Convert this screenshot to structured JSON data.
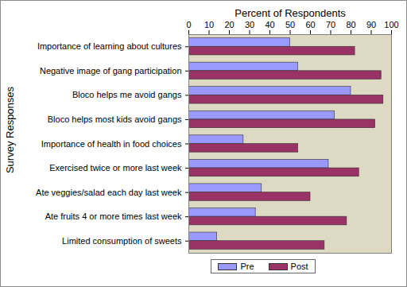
{
  "chart_data": {
    "type": "bar",
    "orientation": "horizontal",
    "x_label": "Percent of Respondents",
    "y_label": "Survey Responses",
    "categories": [
      "Importance of learning about cultures",
      "Negative image of gang participation",
      "Bloco helps me avoid gangs",
      "Bloco helps most kids avoid gangs",
      "Importance of health in food choices",
      "Exercised twice or more last week",
      "Ate veggies/salad each day last week",
      "Ate fruits 4 or more times last week",
      "Limited consumption of sweets"
    ],
    "series": [
      {
        "name": "Pre",
        "color": "#9999ff",
        "values": [
          50,
          54,
          80,
          72,
          27,
          69,
          36,
          33,
          14
        ]
      },
      {
        "name": "Post",
        "color": "#993366",
        "values": [
          82,
          95,
          96,
          92,
          54,
          84,
          60,
          78,
          67
        ]
      }
    ],
    "xlim": [
      0,
      100
    ],
    "xticks": [
      0,
      10,
      20,
      30,
      40,
      50,
      60,
      70,
      80,
      90,
      100
    ],
    "grid": false,
    "legend": "bottom"
  }
}
